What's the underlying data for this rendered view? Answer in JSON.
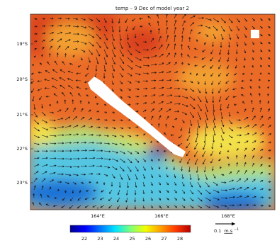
{
  "title": "temp – 9 Dec of model year 2",
  "y_ticks": [
    "19°S",
    "20°S",
    "21°S",
    "22°S",
    "23°S"
  ],
  "x_ticks": [
    "164°E",
    "166°E",
    "168°E"
  ],
  "colorbar": {
    "ticks": [
      "22",
      "23",
      "24",
      "25",
      "26",
      "27",
      "28"
    ],
    "colors": [
      "#00008f",
      "#0000ff",
      "#0073ff",
      "#00e5ff",
      "#7dff7a",
      "#f2ff00",
      "#ffa000",
      "#ff3a00",
      "#b40000"
    ]
  },
  "scale_arrow": {
    "value": "0.1",
    "unit": "m.s",
    "exponent": "−1"
  },
  "map_colors": {
    "warm": "#ea6a28",
    "hot": "#d9401a",
    "mid": "#f2a030",
    "yellow": "#f2e04a",
    "green": "#b8e070",
    "cyan": "#55c6e2",
    "blue": "#1e72d6",
    "deepblue": "#1a20c8",
    "land": "#ffffff"
  }
}
